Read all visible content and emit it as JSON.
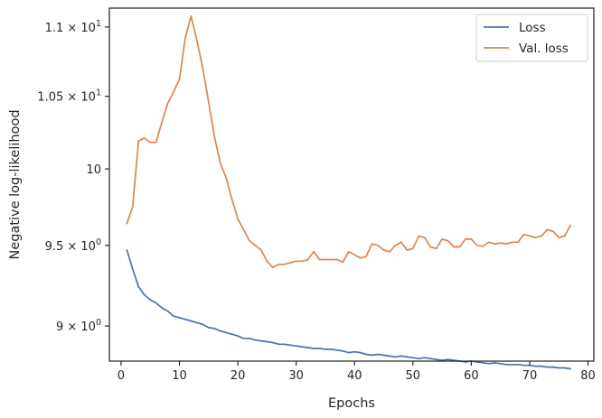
{
  "chart_data": {
    "type": "line",
    "xlabel": "Epochs",
    "ylabel": "Negative log-likelihood",
    "xlim": [
      -2,
      81
    ],
    "ylim": [
      8.79,
      11.14
    ],
    "y_scale": "log",
    "grid": false,
    "legend_position": "top-right",
    "x_ticks": [
      0,
      10,
      20,
      30,
      40,
      50,
      60,
      70,
      80
    ],
    "y_ticks": [
      {
        "value": 9.0,
        "base": "9 × 10",
        "exp": "0"
      },
      {
        "value": 9.5,
        "base": "9.5 × 10",
        "exp": "0"
      },
      {
        "value": 10.0,
        "base": "10",
        "exp": ""
      },
      {
        "value": 10.5,
        "base": "1.05 × 10",
        "exp": "1"
      },
      {
        "value": 11.0,
        "base": "1.1 × 10",
        "exp": "1"
      }
    ],
    "x": [
      1,
      2,
      3,
      4,
      5,
      6,
      7,
      8,
      9,
      10,
      11,
      12,
      13,
      14,
      15,
      16,
      17,
      18,
      19,
      20,
      21,
      22,
      23,
      24,
      25,
      26,
      27,
      28,
      29,
      30,
      31,
      32,
      33,
      34,
      35,
      36,
      37,
      38,
      39,
      40,
      41,
      42,
      43,
      44,
      45,
      46,
      47,
      48,
      49,
      50,
      51,
      52,
      53,
      54,
      55,
      56,
      57,
      58,
      59,
      60,
      61,
      62,
      63,
      64,
      65,
      66,
      67,
      68,
      69,
      70,
      71,
      72,
      73,
      74,
      75,
      76,
      77
    ],
    "series": [
      {
        "name": "Loss",
        "color": "#4c72b0",
        "values": [
          9.47,
          9.35,
          9.24,
          9.19,
          9.16,
          9.14,
          9.11,
          9.09,
          9.06,
          9.05,
          9.04,
          9.03,
          9.02,
          9.01,
          8.99,
          8.985,
          8.97,
          8.96,
          8.95,
          8.94,
          8.925,
          8.925,
          8.915,
          8.91,
          8.905,
          8.9,
          8.89,
          8.89,
          8.885,
          8.88,
          8.875,
          8.87,
          8.865,
          8.865,
          8.86,
          8.86,
          8.855,
          8.85,
          8.84,
          8.845,
          8.84,
          8.83,
          8.825,
          8.83,
          8.825,
          8.82,
          8.815,
          8.82,
          8.815,
          8.81,
          8.805,
          8.81,
          8.805,
          8.8,
          8.795,
          8.8,
          8.795,
          8.79,
          8.785,
          8.79,
          8.785,
          8.78,
          8.775,
          8.78,
          8.775,
          8.77,
          8.77,
          8.77,
          8.765,
          8.765,
          8.76,
          8.76,
          8.755,
          8.755,
          8.75,
          8.75,
          8.745
        ]
      },
      {
        "name": "Val. loss",
        "color": "#dd8452",
        "values": [
          9.64,
          9.75,
          10.19,
          10.21,
          10.18,
          10.18,
          10.32,
          10.45,
          10.53,
          10.62,
          10.92,
          11.08,
          10.9,
          10.7,
          10.46,
          10.22,
          10.04,
          9.94,
          9.8,
          9.67,
          9.6,
          9.53,
          9.5,
          9.47,
          9.4,
          9.36,
          9.38,
          9.38,
          9.39,
          9.4,
          9.4,
          9.41,
          9.46,
          9.41,
          9.41,
          9.41,
          9.41,
          9.395,
          9.46,
          9.44,
          9.42,
          9.43,
          9.51,
          9.5,
          9.47,
          9.46,
          9.5,
          9.52,
          9.47,
          9.48,
          9.56,
          9.55,
          9.49,
          9.48,
          9.54,
          9.53,
          9.49,
          9.49,
          9.54,
          9.54,
          9.5,
          9.495,
          9.52,
          9.51,
          9.515,
          9.51,
          9.52,
          9.52,
          9.57,
          9.56,
          9.55,
          9.56,
          9.6,
          9.59,
          9.55,
          9.56,
          9.63
        ]
      }
    ]
  }
}
